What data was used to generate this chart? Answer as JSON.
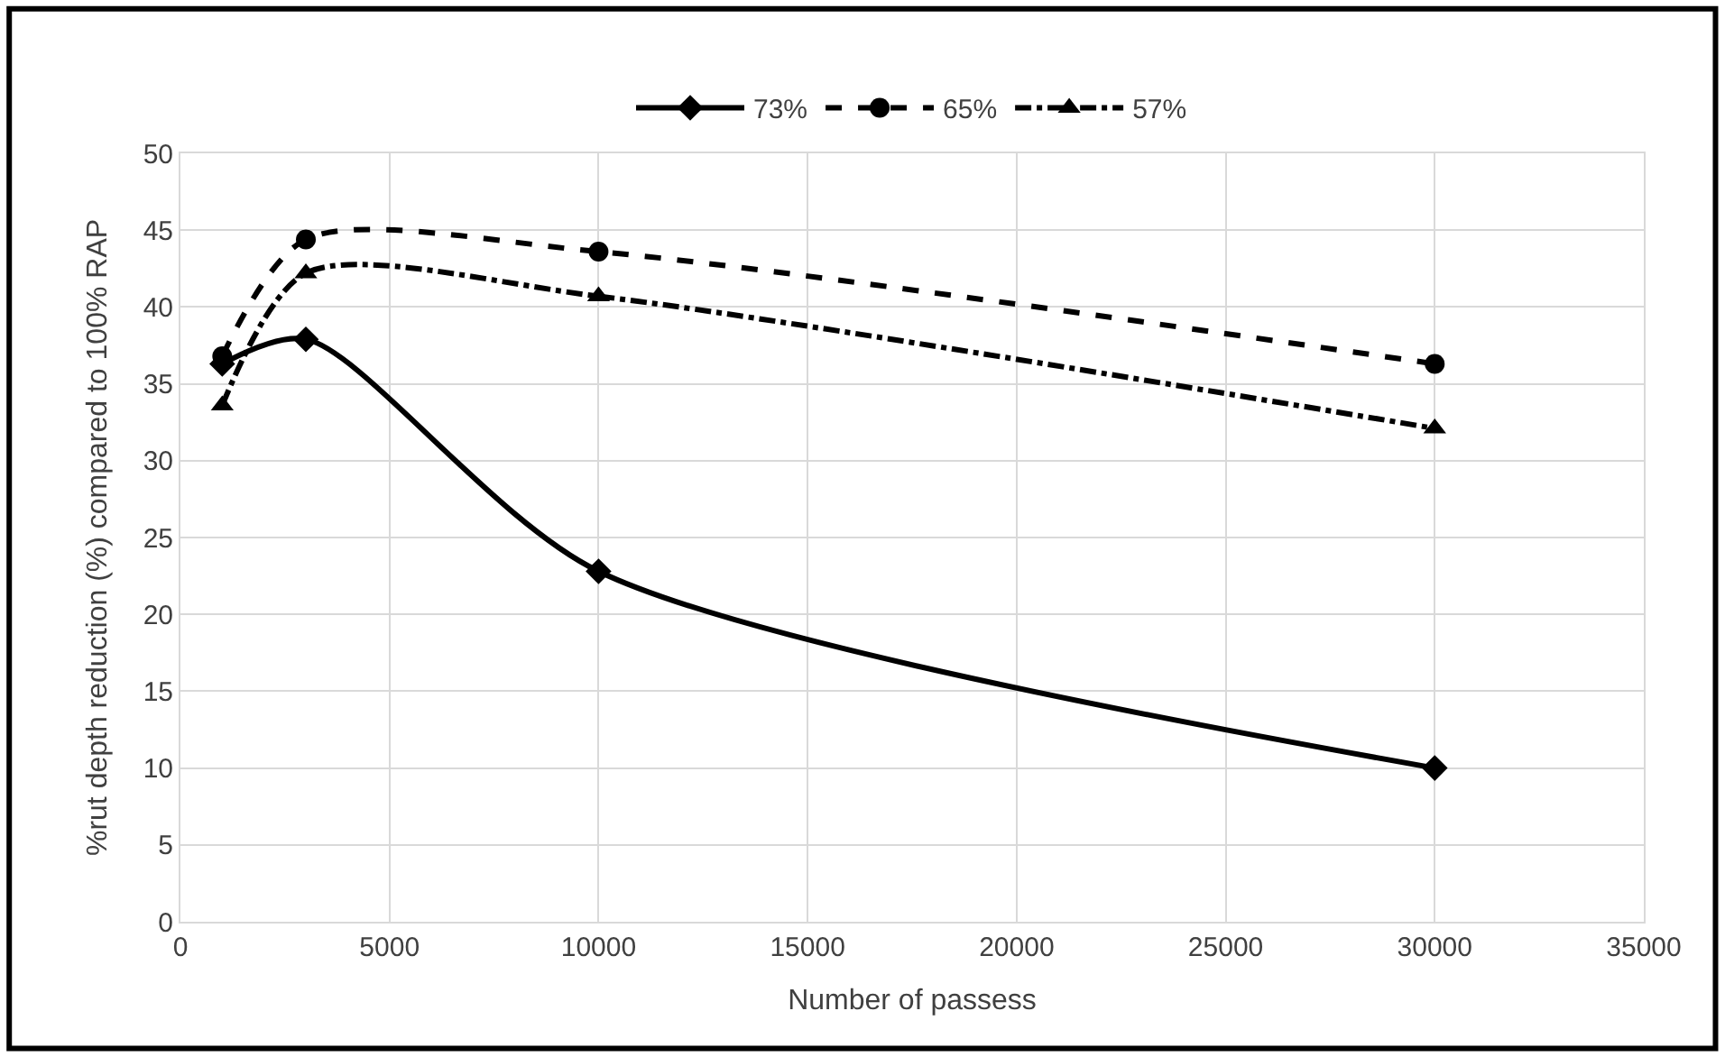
{
  "chart_data": {
    "type": "line",
    "xlabel": "Number of passess",
    "ylabel": "%rut depth reduction (%) compared to 100% RAP",
    "x": [
      1000,
      3000,
      10000,
      30000
    ],
    "series": [
      {
        "name": "73%",
        "color": "#000000",
        "values": [
          36.3,
          37.9,
          22.8,
          10
        ],
        "marker": "diamond",
        "line_style": "solid"
      },
      {
        "name": "65%",
        "color": "#000000",
        "values": [
          36.8,
          44.4,
          43.6,
          36.3
        ],
        "marker": "circle",
        "line_style": "dashed"
      },
      {
        "name": "57%",
        "color": "#000000",
        "values": [
          33.6,
          42.2,
          40.7,
          32.1
        ],
        "marker": "triangle",
        "line_style": "dashdot"
      }
    ],
    "xlim": [
      0,
      35000
    ],
    "xticks": [
      0,
      5000,
      10000,
      15000,
      20000,
      25000,
      30000,
      35000
    ],
    "ylim": [
      0,
      50
    ],
    "yticks": [
      0,
      5,
      10,
      15,
      20,
      25,
      30,
      35,
      40,
      45,
      50
    ],
    "grid": true,
    "legend": "top"
  }
}
